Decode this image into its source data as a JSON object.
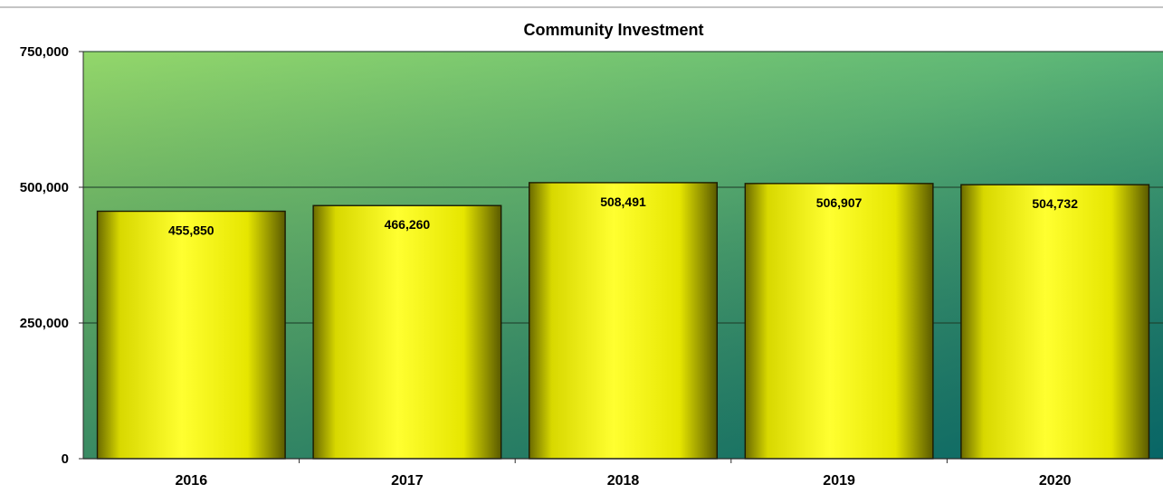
{
  "chart_data": {
    "type": "bar",
    "title": "Community Investment",
    "categories": [
      "2016",
      "2017",
      "2018",
      "2019",
      "2020"
    ],
    "values": [
      455850,
      466260,
      508491,
      506907,
      504732
    ],
    "value_labels": [
      "455,850",
      "466,260",
      "508,491",
      "506,907",
      "504,732"
    ],
    "ylim": [
      0,
      750000
    ],
    "yticks": [
      0,
      250000,
      500000,
      750000
    ],
    "ytick_labels": [
      "0",
      "250,000",
      "500,000",
      "750,000"
    ],
    "grid": true,
    "legend": "none",
    "colors": {
      "bar": "#f2f20a",
      "bar_edge": "#1a1a00",
      "plot_bg_top_left": "#8ed46a",
      "plot_bg_bottom_right": "#0f7d7a",
      "gridline": "#1f3f2a"
    }
  }
}
